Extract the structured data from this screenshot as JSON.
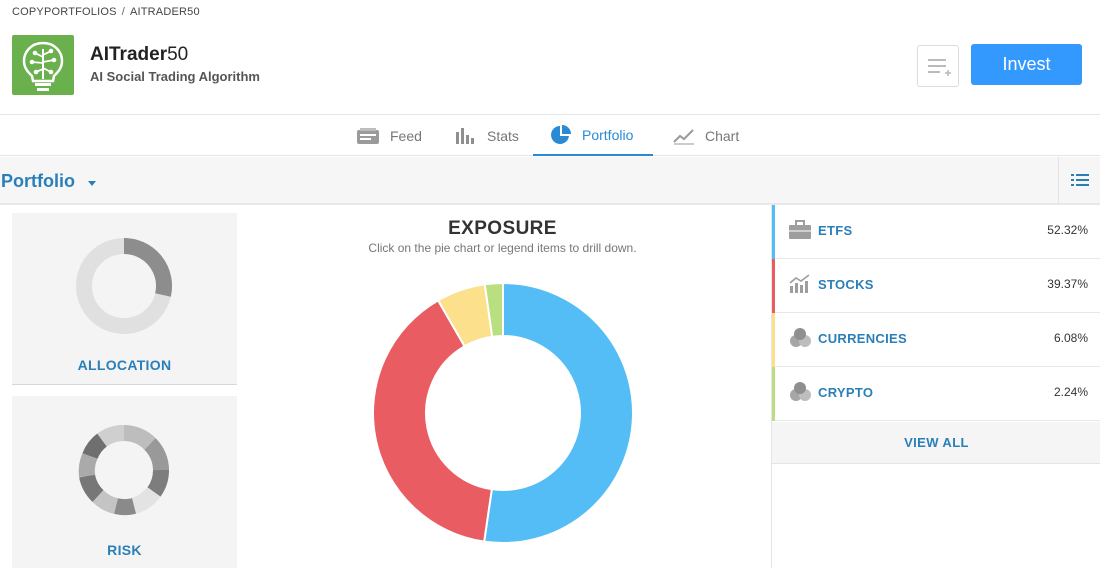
{
  "breadcrumb": {
    "root": "COPYPORTFOLIOS",
    "separator": "/",
    "current": "AITRADER50"
  },
  "header": {
    "title_main": "AITrader",
    "title_num": "50",
    "subtitle": "AI Social Trading Algorithm",
    "invest_label": "Invest",
    "colors": {
      "invest": "#3399ff",
      "logo_bg": "#6ab04c"
    }
  },
  "tabs": [
    {
      "label": "Feed",
      "icon": "feed-icon",
      "active": false
    },
    {
      "label": "Stats",
      "icon": "stats-icon",
      "active": false
    },
    {
      "label": "Portfolio",
      "icon": "pie-icon",
      "active": true
    },
    {
      "label": "Chart",
      "icon": "chart-icon",
      "active": false
    }
  ],
  "subheader": {
    "title": "Portfolio"
  },
  "cards": {
    "allocation": "ALLOCATION",
    "risk": "RISK"
  },
  "exposure": {
    "title": "EXPOSURE",
    "hint": "Click on the pie chart or legend items to drill down."
  },
  "chart_data": {
    "type": "pie",
    "title": "EXPOSURE",
    "categories": [
      "ETFS",
      "STOCKS",
      "CURRENCIES",
      "CRYPTO"
    ],
    "values": [
      52.32,
      39.37,
      6.08,
      2.24
    ],
    "colors": [
      "#55bdf5",
      "#e85c62",
      "#fde08c",
      "#b8df80"
    ]
  },
  "legend": {
    "items": [
      {
        "name": "ETFS",
        "value": "52.32%",
        "color": "#55bdf5",
        "icon": "briefcase-icon"
      },
      {
        "name": "STOCKS",
        "value": "39.37%",
        "color": "#e85c62",
        "icon": "stocks-icon"
      },
      {
        "name": "CURRENCIES",
        "value": "6.08%",
        "color": "#fde08c",
        "icon": "coins-icon"
      },
      {
        "name": "CRYPTO",
        "value": "2.24%",
        "color": "#b8df80",
        "icon": "coins-icon"
      }
    ],
    "view_all": "VIEW ALL"
  }
}
